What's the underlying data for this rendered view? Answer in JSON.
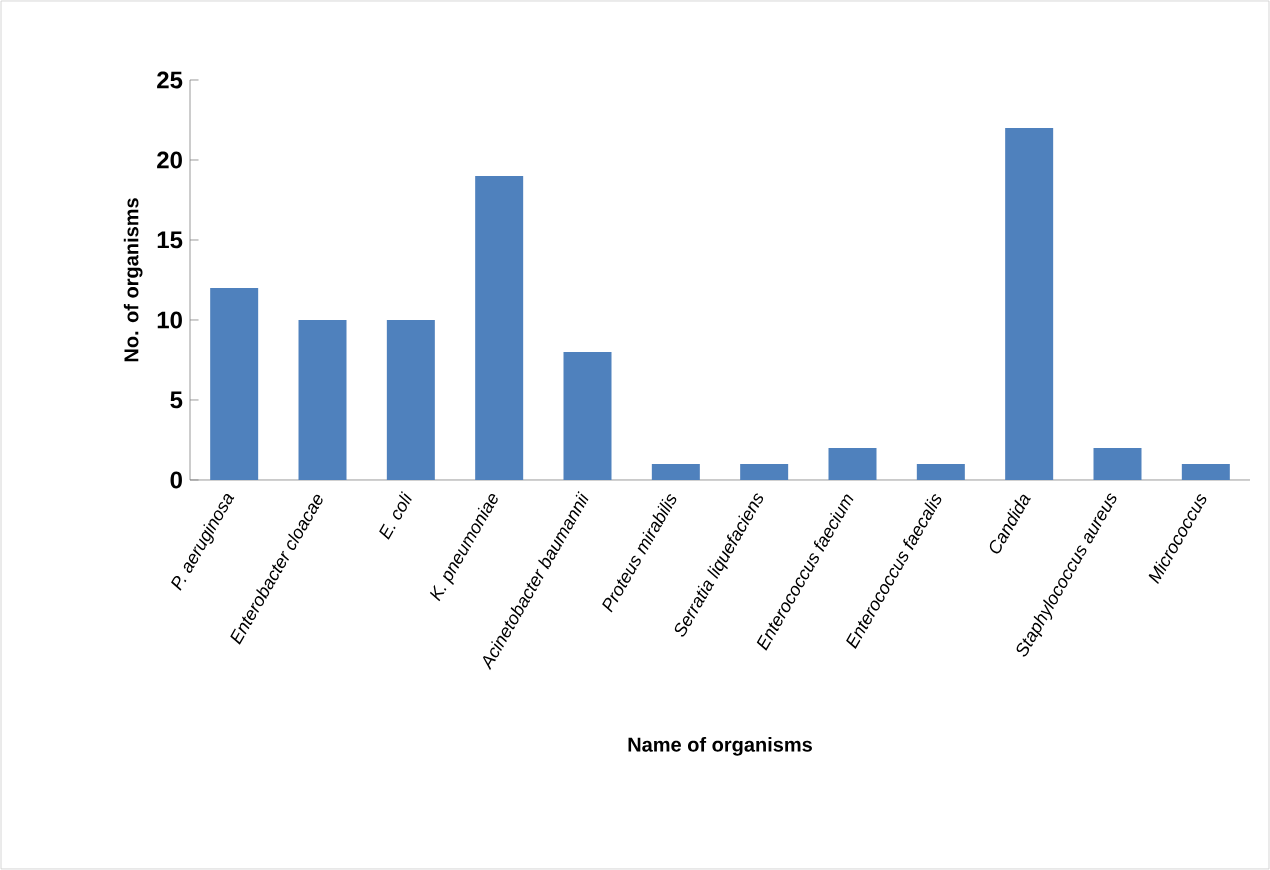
{
  "chart_data": {
    "type": "bar",
    "xlabel": "Name  of organisms",
    "ylabel": "No. of organisms",
    "categories": [
      "P. aeruginosa",
      "Enterobacter cloacae",
      "E. coli",
      "K. pneumoniae",
      "Acinetobacter baumannii",
      "Proteus mirabilis",
      "Serratia liquefaciens",
      "Enterococcus faecium",
      "Enterococcus faecalis",
      "Candida",
      "Staphylococcus aureus",
      "Micrococcus"
    ],
    "values": [
      12,
      10,
      10,
      19,
      8,
      1,
      1,
      2,
      1,
      22,
      2,
      1
    ],
    "color": "#4f81bd",
    "ylim": [
      0,
      25
    ],
    "yticks": [
      0,
      5,
      10,
      15,
      20,
      25
    ]
  }
}
